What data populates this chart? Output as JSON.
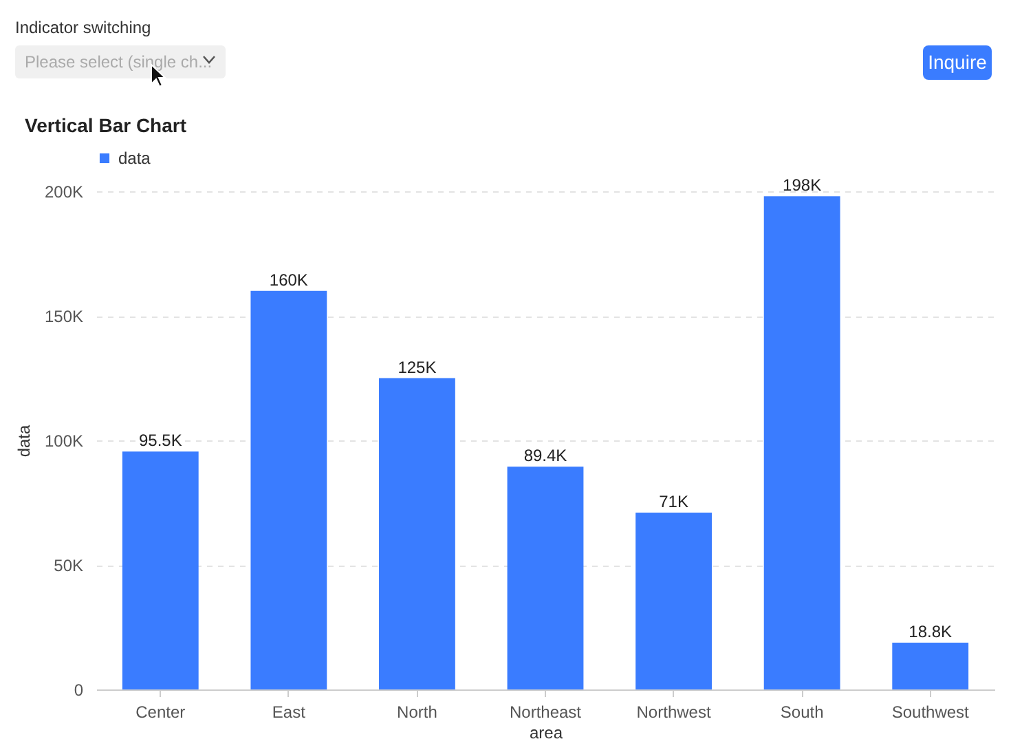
{
  "chart_data": {
    "type": "bar",
    "title": "Vertical Bar Chart",
    "xlabel": "area",
    "ylabel": "data",
    "annotations": [
      "Indicator switching",
      "Please select (single ch...",
      "Inquire"
    ],
    "categories": [
      "Center",
      "East",
      "North",
      "Northeast",
      "Northwest",
      "South",
      "Southwest"
    ],
    "series": [
      {
        "name": "data",
        "color": "#3a7cff",
        "values": [
          95500,
          160000,
          125000,
          89400,
          71000,
          198000,
          18800
        ],
        "value_labels": [
          "95.5K",
          "160K",
          "125K",
          "89.4K",
          "71K",
          "198K",
          "18.8K"
        ]
      }
    ],
    "ylim": [
      0,
      200000
    ],
    "yticks": [
      0,
      {
        "value": 50000,
        "label": "50K"
      },
      {
        "value": 100000,
        "label": "100K"
      },
      {
        "value": 150000,
        "label": "150K"
      },
      {
        "value": 200000,
        "label": "200K"
      }
    ],
    "grid": "y",
    "legend": "top"
  }
}
